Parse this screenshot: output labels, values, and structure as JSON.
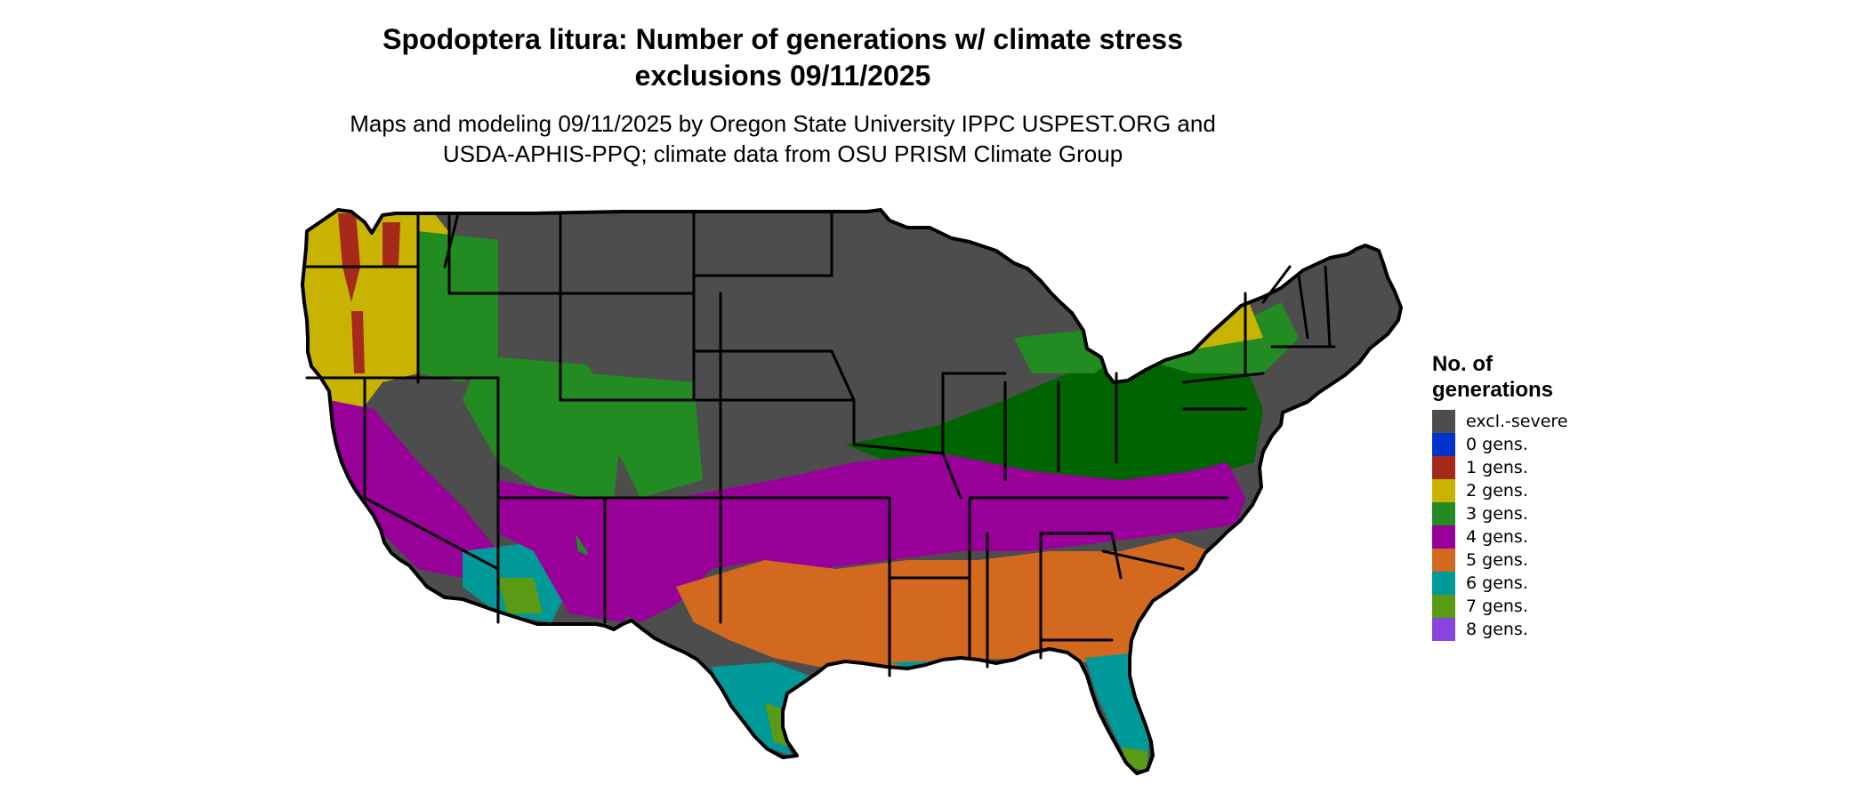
{
  "map": {
    "title_line1": "Spodoptera litura: Number of generations w/ climate stress",
    "title_line2": "exclusions 09/11/2025",
    "subtitle_line1": "Maps and modeling 09/11/2025 by Oregon State University IPPC USPEST.ORG and",
    "subtitle_line2": "USDA-APHIS-PPQ; climate data from OSU PRISM Climate Group"
  },
  "legend": {
    "title": "No. of generations",
    "items": [
      {
        "label": "excl.-severe",
        "color": "#4d4d4d"
      },
      {
        "label": "0 gens.",
        "color": "#0033cc"
      },
      {
        "label": "1 gens.",
        "color": "#a52a1a"
      },
      {
        "label": "2 gens.",
        "color": "#c8b400"
      },
      {
        "label": "3 gens.",
        "color": "#228b22"
      },
      {
        "label": "4 gens.",
        "color": "#990099"
      },
      {
        "label": "5 gens.",
        "color": "#d2691e"
      },
      {
        "label": "6 gens.",
        "color": "#009999"
      },
      {
        "label": "7 gens.",
        "color": "#5a9a14"
      },
      {
        "label": "8 gens.",
        "color": "#8844dd"
      }
    ]
  },
  "colors": {
    "excl": "#4d4d4d",
    "g1": "#a52a1a",
    "g2": "#c8b400",
    "g3": "#228b22",
    "g3dark": "#006400",
    "g4": "#990099",
    "g5": "#d2691e",
    "g6": "#009999",
    "g7": "#5a9a14",
    "border": "#000000"
  }
}
